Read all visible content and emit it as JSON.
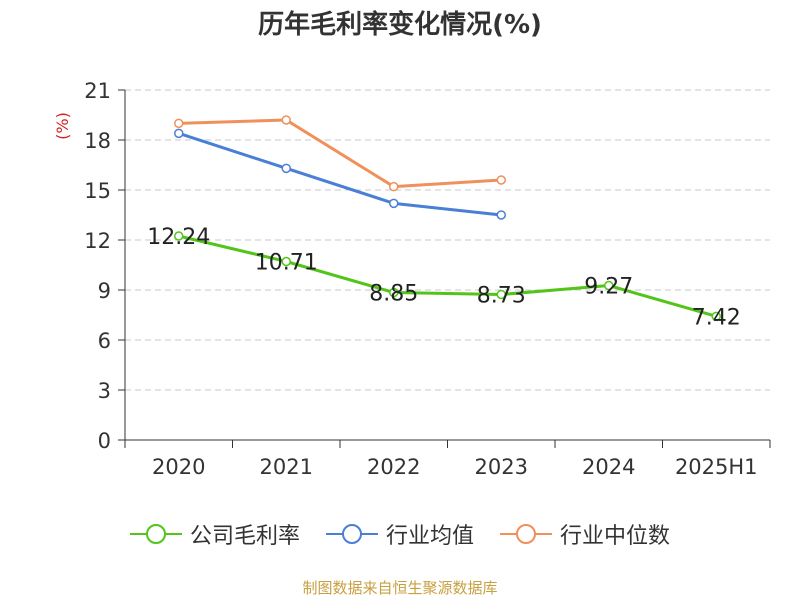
{
  "title": "历年毛利率变化情况(%)",
  "source": "制图数据来自恒生聚源数据库",
  "chart_data": {
    "type": "line",
    "title": "历年毛利率变化情况(%)",
    "ylabel": "(%)",
    "xlabel": "",
    "categories": [
      "2020",
      "2021",
      "2022",
      "2023",
      "2024",
      "2025H1"
    ],
    "ylim": [
      0,
      21
    ],
    "yticks": [
      0,
      3,
      6,
      9,
      12,
      15,
      18,
      21
    ],
    "grid": true,
    "legend_position": "bottom",
    "series": [
      {
        "name": "公司毛利率",
        "color": "#52c41a",
        "values": [
          12.24,
          10.71,
          8.85,
          8.73,
          9.27,
          7.42
        ],
        "labels": [
          "12.24",
          "10.71",
          "8.85",
          "8.73",
          "9.27",
          "7.42"
        ]
      },
      {
        "name": "行业均值",
        "color": "#4a7fd6",
        "values": [
          18.4,
          16.3,
          14.2,
          13.5,
          null,
          null
        ]
      },
      {
        "name": "行业中位数",
        "color": "#f0905a",
        "values": [
          19.0,
          19.2,
          15.2,
          15.6,
          null,
          null
        ]
      }
    ]
  }
}
